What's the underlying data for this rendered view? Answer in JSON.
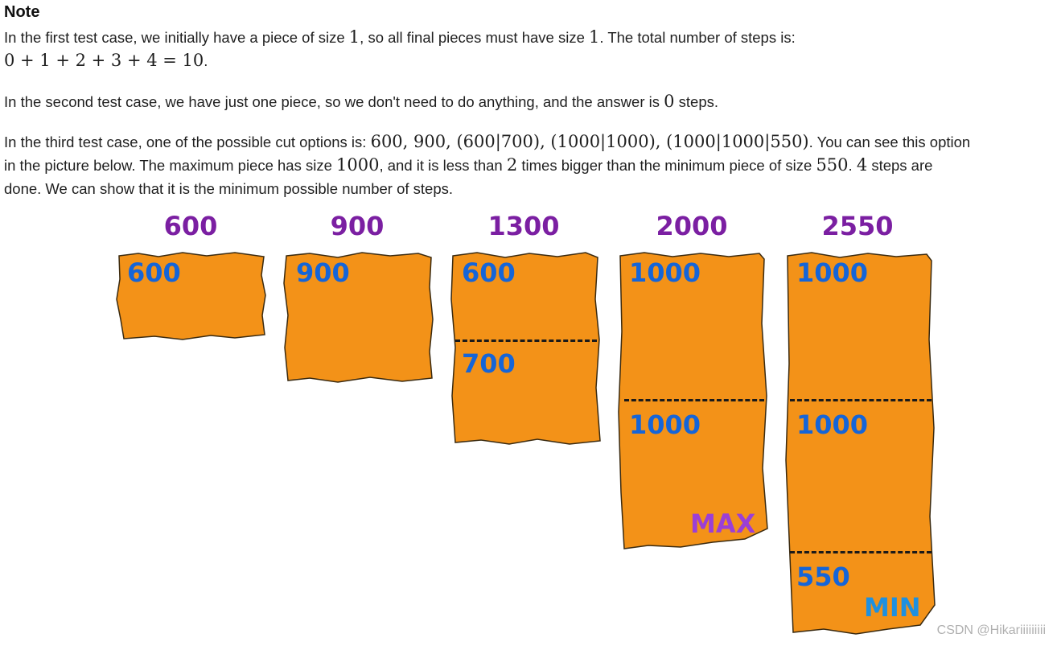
{
  "note": {
    "title": "Note",
    "p1_line1_pre": "In the first test case, we initially have a piece of size ",
    "p1_math1": "1",
    "p1_line1_mid": ", so all final pieces must have size ",
    "p1_math2": "1",
    "p1_line1_post": ". The total number of steps is:",
    "p1_line2_math": "0 + 1 + 2 + 3 + 4 = 10",
    "p1_line2_post": ".",
    "p2_pre": "In the second test case, we have just one piece, so we don't need to do anything, and the answer is ",
    "p2_math": "0",
    "p2_post": " steps.",
    "p3_line1_pre": "In the third test case, one of the possible cut options is: ",
    "p3_line1_math": "600,  900,  (600|700),  (1000|1000),  (1000|1000|550)",
    "p3_line1_post": ". You can see this option",
    "p3_line2_pre": "in the picture below. The maximum piece has size ",
    "p3_line2_math1": "1000",
    "p3_line2_mid": ", and it is less than ",
    "p3_line2_math2": "2",
    "p3_line2_mid2": " times bigger than the minimum piece of size ",
    "p3_line2_math3": "550",
    "p3_line2_sep": ". ",
    "p3_line2_math4": "4",
    "p3_line2_post": " steps are",
    "p3_line3": "done. We can show that it is the minimum possible number of steps."
  },
  "figure": {
    "totals": [
      "600",
      "900",
      "1300",
      "2000",
      "2550"
    ],
    "pieces": [
      {
        "labels": [
          "600"
        ]
      },
      {
        "labels": [
          "900"
        ]
      },
      {
        "labels": [
          "600",
          "700"
        ]
      },
      {
        "labels": [
          "1000",
          "1000"
        ],
        "tag": "MAX"
      },
      {
        "labels": [
          "1000",
          "1000",
          "550"
        ],
        "tag": "MIN"
      }
    ],
    "colors": {
      "piece_fill": "#f39218",
      "outline": "#3a2a10",
      "label": "#1565d8",
      "total": "#7b1fa2",
      "max": "#9b3fd6",
      "min": "#1e90e0"
    }
  },
  "watermark": "CSDN @Hikariiiiiiiii"
}
